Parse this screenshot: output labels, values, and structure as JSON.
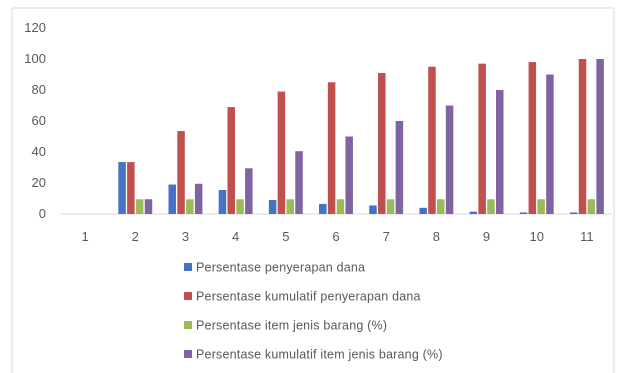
{
  "chart_data": {
    "type": "bar",
    "categories": [
      "1",
      "2",
      "3",
      "4",
      "5",
      "6",
      "7",
      "8",
      "9",
      "10",
      "11"
    ],
    "ylim": [
      0,
      120
    ],
    "yticks": [
      "0",
      "20",
      "40",
      "60",
      "80",
      "100",
      "120"
    ],
    "grid": false,
    "legend_position": "bottom",
    "series": [
      {
        "name": "Persentase penyerapan dana",
        "color": "#4472C4",
        "values": [
          0,
          33.5,
          19,
          15.5,
          9,
          6.5,
          5.5,
          4,
          1.5,
          1,
          1
        ]
      },
      {
        "name": "Persentase kumulatif penyerapan dana",
        "color": "#C0504D",
        "values": [
          0,
          33.5,
          53.5,
          69,
          79,
          85,
          91,
          95,
          97,
          98,
          100
        ]
      },
      {
        "name": "Persentase item jenis barang (%)",
        "color": "#9BBB59",
        "values": [
          0,
          9.5,
          9.5,
          9.5,
          9.5,
          9.5,
          9.5,
          9.5,
          9.5,
          9.5,
          9.5
        ]
      },
      {
        "name": "Persentase kumulatif item jenis barang (%)",
        "color": "#8064A2",
        "values": [
          0,
          9.5,
          19.5,
          29.5,
          40.5,
          50,
          60,
          70,
          80,
          90,
          100
        ]
      }
    ]
  }
}
